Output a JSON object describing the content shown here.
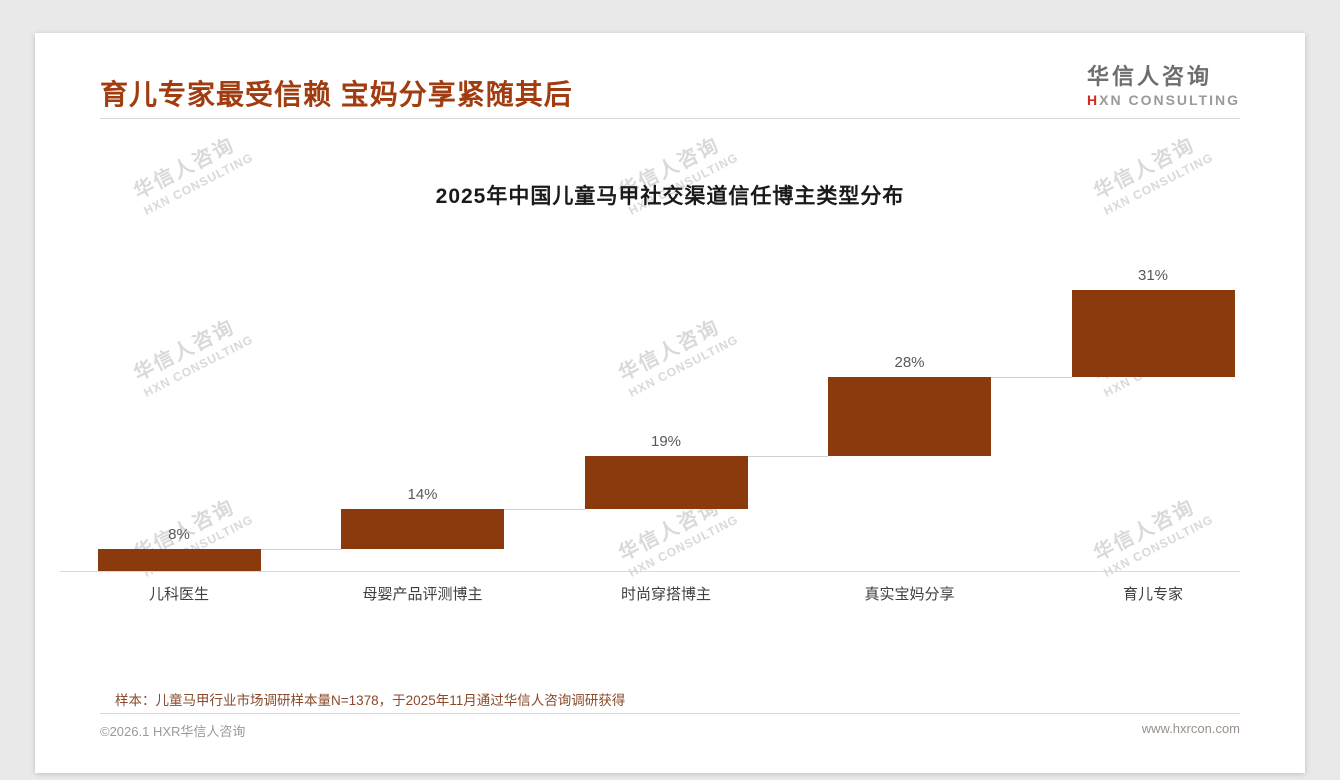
{
  "page": {
    "header": {
      "title": "育儿专家最受信赖 宝妈分享紧随其后"
    },
    "logo": {
      "cn": "华信人咨询",
      "en": "HXN CONSULTING",
      "en_mark": "H",
      "en_rest": "XN CONSULTING"
    },
    "watermark": {
      "cn": "华信人咨询",
      "en": "HXN CONSULTING"
    },
    "footer": {
      "note": "样本：儿童马甲行业市场调研样本量N=1378，于2025年11月通过华信人咨询调研获得",
      "copyright": "©2026.1 HXR华信人咨询",
      "website": "www.hxrcon.com"
    }
  },
  "chart_data": {
    "type": "bar",
    "subtype": "waterfall",
    "title": "2025年中国儿童马甲社交渠道信任博主类型分布",
    "categories": [
      "儿科医生",
      "母婴产品评测博主",
      "时尚穿搭博主",
      "真实宝妈分享",
      "育儿专家"
    ],
    "values": [
      8,
      14,
      19,
      28,
      31
    ],
    "value_labels": [
      "8%",
      "14%",
      "19%",
      "28%",
      "31%"
    ],
    "unit": "%",
    "ylim": [
      0,
      100
    ],
    "cumulative": true,
    "grid": false,
    "legend": false,
    "bar_color": "#8B3A0E",
    "value_label_color": "#595959",
    "connector_color": "#cfcfcf"
  }
}
